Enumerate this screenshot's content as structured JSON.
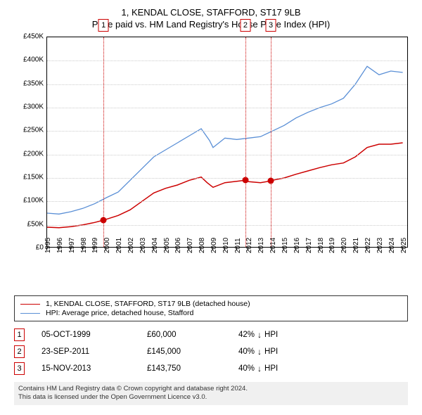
{
  "title": "1, KENDAL CLOSE, STAFFORD, ST17 9LB",
  "subtitle": "Price paid vs. HM Land Registry's House Price Index (HPI)",
  "chart": {
    "type": "line",
    "background_color": "#ffffff",
    "grid_color": "#cccccc",
    "border_color": "#000000",
    "x_years": [
      1995,
      1996,
      1997,
      1998,
      1999,
      2000,
      2001,
      2002,
      2003,
      2004,
      2005,
      2006,
      2007,
      2008,
      2009,
      2010,
      2011,
      2012,
      2013,
      2014,
      2015,
      2016,
      2017,
      2018,
      2019,
      2020,
      2021,
      2022,
      2023,
      2024,
      2025
    ],
    "xlim": [
      1995,
      2025.5
    ],
    "ylim": [
      0,
      450000
    ],
    "ytick_step": 50000,
    "ytick_labels": [
      "£0",
      "£50K",
      "£100K",
      "£150K",
      "£200K",
      "£250K",
      "£300K",
      "£350K",
      "£400K",
      "£450K"
    ],
    "series_price": {
      "label": "1, KENDAL CLOSE, STAFFORD, ST17 9LB (detached house)",
      "color": "#cc0000",
      "line_width": 1.5,
      "points": [
        [
          1995,
          45000
        ],
        [
          1996,
          44000
        ],
        [
          1997,
          46000
        ],
        [
          1998,
          50000
        ],
        [
          1999,
          55000
        ],
        [
          1999.76,
          60000
        ],
        [
          2000,
          62000
        ],
        [
          2001,
          70000
        ],
        [
          2002,
          82000
        ],
        [
          2003,
          100000
        ],
        [
          2004,
          118000
        ],
        [
          2005,
          128000
        ],
        [
          2006,
          135000
        ],
        [
          2007,
          145000
        ],
        [
          2008,
          152000
        ],
        [
          2008.5,
          140000
        ],
        [
          2009,
          130000
        ],
        [
          2010,
          140000
        ],
        [
          2011,
          143000
        ],
        [
          2011.73,
          145000
        ],
        [
          2012,
          142000
        ],
        [
          2013,
          140000
        ],
        [
          2013.87,
          143750
        ],
        [
          2014,
          145000
        ],
        [
          2015,
          150000
        ],
        [
          2016,
          158000
        ],
        [
          2017,
          165000
        ],
        [
          2018,
          172000
        ],
        [
          2019,
          178000
        ],
        [
          2020,
          182000
        ],
        [
          2021,
          195000
        ],
        [
          2022,
          215000
        ],
        [
          2023,
          222000
        ],
        [
          2024,
          222000
        ],
        [
          2025,
          225000
        ]
      ]
    },
    "series_hpi": {
      "label": "HPI: Average price, detached house, Stafford",
      "color": "#5a8fd6",
      "line_width": 1.3,
      "points": [
        [
          1995,
          75000
        ],
        [
          1996,
          73000
        ],
        [
          1997,
          78000
        ],
        [
          1998,
          85000
        ],
        [
          1999,
          95000
        ],
        [
          2000,
          108000
        ],
        [
          2001,
          120000
        ],
        [
          2002,
          145000
        ],
        [
          2003,
          170000
        ],
        [
          2004,
          195000
        ],
        [
          2005,
          210000
        ],
        [
          2006,
          225000
        ],
        [
          2007,
          240000
        ],
        [
          2008,
          255000
        ],
        [
          2008.7,
          230000
        ],
        [
          2009,
          215000
        ],
        [
          2010,
          235000
        ],
        [
          2011,
          232000
        ],
        [
          2012,
          235000
        ],
        [
          2013,
          238000
        ],
        [
          2014,
          250000
        ],
        [
          2015,
          262000
        ],
        [
          2016,
          278000
        ],
        [
          2017,
          290000
        ],
        [
          2018,
          300000
        ],
        [
          2019,
          308000
        ],
        [
          2020,
          320000
        ],
        [
          2021,
          350000
        ],
        [
          2022,
          388000
        ],
        [
          2023,
          370000
        ],
        [
          2024,
          378000
        ],
        [
          2025,
          375000
        ]
      ]
    },
    "markers": [
      {
        "num": "1",
        "year": 1999.76,
        "price": 60000,
        "color": "#cc0000",
        "date": "05-OCT-1999",
        "price_str": "£60,000",
        "delta_pct": "42%",
        "delta_dir": "↓",
        "delta_vs": "HPI"
      },
      {
        "num": "2",
        "year": 2011.73,
        "price": 145000,
        "color": "#cc0000",
        "date": "23-SEP-2011",
        "price_str": "£145,000",
        "delta_pct": "40%",
        "delta_dir": "↓",
        "delta_vs": "HPI"
      },
      {
        "num": "3",
        "year": 2013.87,
        "price": 143750,
        "color": "#cc0000",
        "date": "15-NOV-2013",
        "price_str": "£143,750",
        "delta_pct": "40%",
        "delta_dir": "↓",
        "delta_vs": "HPI"
      }
    ],
    "marker_point_color": "#cc0000"
  },
  "footer": {
    "line1": "Contains HM Land Registry data © Crown copyright and database right 2024.",
    "line2": "This data is licensed under the Open Government Licence v3.0."
  }
}
